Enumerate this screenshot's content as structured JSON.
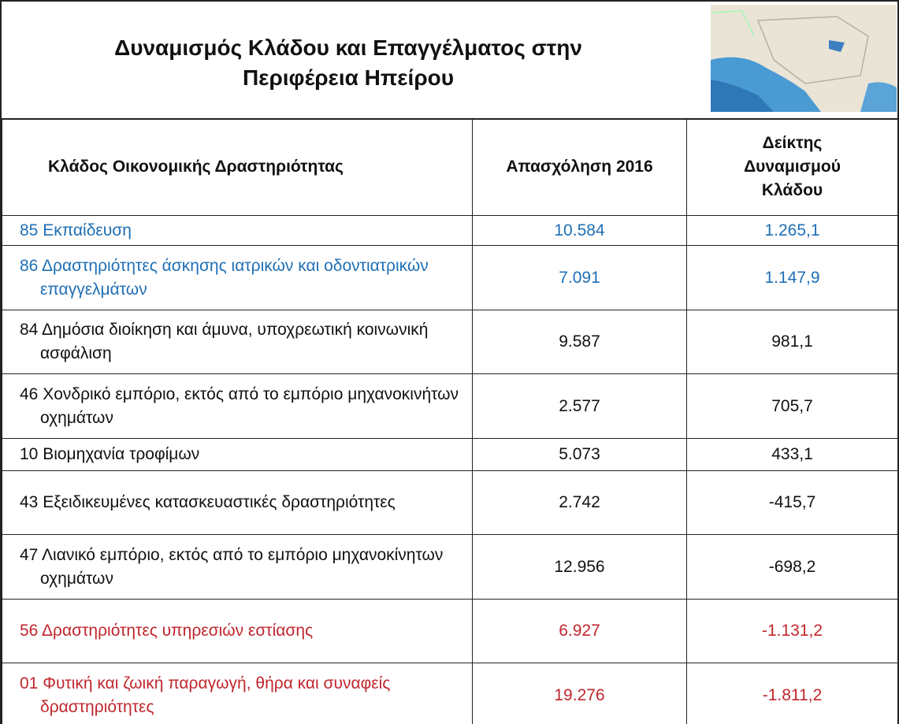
{
  "header": {
    "title": "Δυναμισμός Κλάδου και Επαγγέλματος στην Περιφέρεια Ηπείρου"
  },
  "table": {
    "columns": [
      "Κλάδος Οικονομικής Δραστηριότητας",
      "Απασχόληση 2016",
      "Δείκτης Δυναμισμού Κλάδου"
    ],
    "rows": [
      {
        "cells": [
          "85 Εκπαίδευση",
          "10.584",
          "1.265,1"
        ],
        "color": "#1f6fb5"
      },
      {
        "cells": [
          "86 Δραστηριότητες άσκησης ιατρικών και οδοντιατρικών επαγγελμάτων",
          "7.091",
          "1.147,9"
        ],
        "color": "#1f6fb5"
      },
      {
        "cells": [
          "84 Δημόσια διοίκηση και άμυνα, υποχρεωτική κοινωνική ασφάλιση",
          "9.587",
          "981,1"
        ],
        "color": "#111111"
      },
      {
        "cells": [
          "46 Χονδρικό εμπόριο, εκτός από το εμπόριο μηχανοκινήτων οχημάτων",
          "2.577",
          "705,7"
        ],
        "color": "#111111"
      },
      {
        "cells": [
          "10 Βιομηχανία τροφίμων",
          "5.073",
          "433,1"
        ],
        "color": "#111111"
      },
      {
        "cells": [
          "43 Εξειδικευμένες κατασκευαστικές δραστηριότητες",
          "2.742",
          "-415,7"
        ],
        "color": "#111111"
      },
      {
        "cells": [
          "47 Λιανικό εμπόριο, εκτός από το εμπόριο μηχανοκίνητων οχημάτων",
          "12.956",
          "-698,2"
        ],
        "color": "#111111"
      },
      {
        "cells": [
          "56 Δραστηριότητες υπηρεσιών εστίασης",
          "6.927",
          "-1.131,2"
        ],
        "color": "#c0262d"
      },
      {
        "cells": [
          "01 Φυτική και ζωική παραγωγή, θήρα και συναφείς δραστηριότητες",
          "19.276",
          "-1.811,2"
        ],
        "color": "#c0262d"
      }
    ]
  }
}
